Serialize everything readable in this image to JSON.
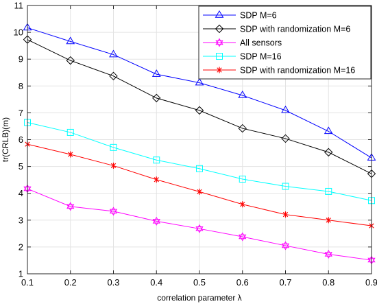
{
  "chart_data": {
    "type": "line",
    "xlabel": "correlation parameter λ",
    "ylabel": "tr(CRLB)(m)",
    "xlim": [
      0.1,
      0.9
    ],
    "ylim": [
      1,
      11
    ],
    "x": [
      0.1,
      0.2,
      0.3,
      0.4,
      0.5,
      0.6,
      0.7,
      0.8,
      0.9
    ],
    "x_tick_labels": [
      "0.1",
      "0.2",
      "0.3",
      "0.4",
      "0.5",
      "0.6",
      "0.7",
      "0.8",
      "0.9"
    ],
    "y_ticks": [
      1,
      2,
      3,
      4,
      5,
      6,
      7,
      8,
      9,
      10,
      11
    ],
    "y_tick_labels": [
      "1",
      "2",
      "3",
      "4",
      "5",
      "6",
      "7",
      "8",
      "9",
      "10",
      "11"
    ],
    "grid": true,
    "legend_position": "top-right",
    "series": [
      {
        "name": "SDP M=6",
        "color": "#0000ff",
        "marker": "triangle",
        "values": [
          10.17,
          9.66,
          9.17,
          8.44,
          8.12,
          7.65,
          7.09,
          6.31,
          5.32
        ]
      },
      {
        "name": "SDP with randomization M=6",
        "color": "#000000",
        "marker": "diamond",
        "values": [
          9.73,
          8.95,
          8.37,
          7.55,
          7.09,
          6.42,
          6.04,
          5.53,
          4.73
        ]
      },
      {
        "name": "All sensors",
        "color": "#ff00ff",
        "marker": "hexagram",
        "values": [
          4.17,
          3.51,
          3.33,
          2.96,
          2.68,
          2.38,
          2.05,
          1.73,
          1.51
        ]
      },
      {
        "name": "SDP M=16",
        "color": "#00ffff",
        "marker": "square",
        "values": [
          6.64,
          6.27,
          5.71,
          5.24,
          4.92,
          4.53,
          4.26,
          4.07,
          3.73
        ]
      },
      {
        "name": "SDP with randomization M=16",
        "color": "#ff0000",
        "marker": "asterisk",
        "values": [
          5.83,
          5.45,
          5.03,
          4.51,
          4.06,
          3.59,
          3.21,
          3.0,
          2.79
        ]
      }
    ]
  }
}
